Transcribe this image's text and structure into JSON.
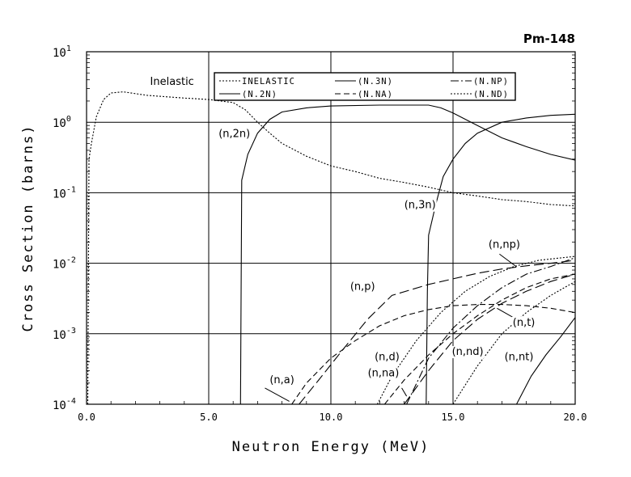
{
  "chart_data": {
    "type": "line",
    "title": "Pm-148",
    "xlabel": "Neutron Energy (MeV)",
    "ylabel": "Cross Section (barns)",
    "xlim": [
      0,
      20
    ],
    "ylim": [
      0.0001,
      10
    ],
    "yscale": "log",
    "grid": true,
    "x_ticks": [
      "0.0",
      "5.0",
      "10.0",
      "15.0",
      "20.0"
    ],
    "y_ticks": [
      {
        "base": "10",
        "exp": "1"
      },
      {
        "base": "10",
        "exp": "0"
      },
      {
        "base": "10",
        "exp": "-1"
      },
      {
        "base": "10",
        "exp": "-2"
      },
      {
        "base": "10",
        "exp": "-3"
      },
      {
        "base": "10",
        "exp": "-4"
      }
    ],
    "legend": [
      {
        "label": "INELASTIC",
        "style": "dotted"
      },
      {
        "label": "(N.3N)",
        "style": "solid"
      },
      {
        "label": "(N.NP)",
        "style": "dashdot"
      },
      {
        "label": "(N.2N)",
        "style": "solid"
      },
      {
        "label": "(N.NA)",
        "style": "dashed"
      },
      {
        "label": "(N.ND)",
        "style": "dotted"
      }
    ],
    "series": [
      {
        "name": "Inelastic",
        "style": "dotted",
        "points": [
          [
            0.05,
            0.0001
          ],
          [
            0.1,
            0.3
          ],
          [
            0.2,
            0.5
          ],
          [
            0.4,
            1.2
          ],
          [
            0.7,
            2.1
          ],
          [
            1.0,
            2.6
          ],
          [
            1.5,
            2.7
          ],
          [
            2.5,
            2.4
          ],
          [
            4.0,
            2.2
          ],
          [
            5.0,
            2.1
          ],
          [
            6.0,
            1.9
          ],
          [
            6.5,
            1.5
          ],
          [
            7.0,
            1.0
          ],
          [
            7.5,
            0.7
          ],
          [
            8.0,
            0.5
          ],
          [
            9.0,
            0.33
          ],
          [
            10.0,
            0.24
          ],
          [
            11.0,
            0.2
          ],
          [
            12.0,
            0.16
          ],
          [
            13.0,
            0.14
          ],
          [
            14.0,
            0.12
          ],
          [
            15.0,
            0.1
          ],
          [
            16.0,
            0.09
          ],
          [
            17.0,
            0.08
          ],
          [
            18.0,
            0.075
          ],
          [
            19.0,
            0.068
          ],
          [
            20.0,
            0.065
          ]
        ]
      },
      {
        "name": "(n,2n)",
        "style": "solid",
        "points": [
          [
            6.3,
            0.0001
          ],
          [
            6.32,
            0.002
          ],
          [
            6.35,
            0.15
          ],
          [
            6.6,
            0.35
          ],
          [
            7.0,
            0.7
          ],
          [
            7.5,
            1.1
          ],
          [
            8.0,
            1.4
          ],
          [
            9.0,
            1.6
          ],
          [
            10.0,
            1.7
          ],
          [
            12.0,
            1.75
          ],
          [
            14.0,
            1.75
          ],
          [
            14.5,
            1.6
          ],
          [
            15.0,
            1.35
          ],
          [
            16.0,
            0.9
          ],
          [
            17.0,
            0.6
          ],
          [
            18.0,
            0.45
          ],
          [
            19.0,
            0.35
          ],
          [
            20.0,
            0.29
          ]
        ]
      },
      {
        "name": "(n,3n)",
        "style": "solid",
        "points": [
          [
            13.9,
            0.0001
          ],
          [
            13.95,
            0.004
          ],
          [
            14.0,
            0.025
          ],
          [
            14.3,
            0.07
          ],
          [
            14.6,
            0.17
          ],
          [
            15.0,
            0.3
          ],
          [
            15.5,
            0.5
          ],
          [
            16.0,
            0.7
          ],
          [
            17.0,
            1.0
          ],
          [
            18.0,
            1.15
          ],
          [
            19.0,
            1.25
          ],
          [
            20.0,
            1.3
          ]
        ]
      },
      {
        "name": "(n,p)",
        "style": "longdash",
        "points": [
          [
            8.7,
            0.0001
          ],
          [
            9.5,
            0.00022
          ],
          [
            10.5,
            0.0006
          ],
          [
            11.5,
            0.0016
          ],
          [
            12.5,
            0.0035
          ],
          [
            14.0,
            0.005
          ],
          [
            15.0,
            0.006
          ],
          [
            16.0,
            0.0072
          ],
          [
            17.0,
            0.0083
          ],
          [
            18.0,
            0.0092
          ],
          [
            19.0,
            0.01
          ],
          [
            20.0,
            0.011
          ]
        ]
      },
      {
        "name": "(n,a)",
        "style": "dashed",
        "points": [
          [
            8.4,
            0.0001
          ],
          [
            9.0,
            0.0002
          ],
          [
            10.0,
            0.00045
          ],
          [
            11.0,
            0.0008
          ],
          [
            12.0,
            0.0013
          ],
          [
            13.0,
            0.0018
          ],
          [
            14.0,
            0.0022
          ],
          [
            15.0,
            0.0025
          ],
          [
            16.0,
            0.0026
          ],
          [
            17.0,
            0.0026
          ],
          [
            18.0,
            0.0025
          ],
          [
            19.0,
            0.0023
          ],
          [
            20.0,
            0.002
          ]
        ]
      },
      {
        "name": "(n,np)",
        "style": "dashdot",
        "points": [
          [
            13.1,
            0.0001
          ],
          [
            14.0,
            0.00045
          ],
          [
            15.0,
            0.0012
          ],
          [
            16.0,
            0.0025
          ],
          [
            17.0,
            0.0045
          ],
          [
            18.0,
            0.007
          ],
          [
            19.0,
            0.009
          ],
          [
            20.0,
            0.012
          ]
        ]
      },
      {
        "name": "(n,d)",
        "style": "dotted",
        "points": [
          [
            11.9,
            0.0001
          ],
          [
            12.5,
            0.00025
          ],
          [
            13.5,
            0.0008
          ],
          [
            14.5,
            0.002
          ],
          [
            15.5,
            0.004
          ],
          [
            16.5,
            0.0065
          ],
          [
            17.5,
            0.009
          ],
          [
            18.5,
            0.011
          ],
          [
            19.5,
            0.012
          ],
          [
            20.0,
            0.0125
          ]
        ]
      },
      {
        "name": "(n,na)",
        "style": "dashed",
        "points": [
          [
            12.2,
            0.0001
          ],
          [
            13.0,
            0.00022
          ],
          [
            14.0,
            0.0005
          ],
          [
            15.0,
            0.001
          ],
          [
            16.0,
            0.0018
          ],
          [
            17.0,
            0.003
          ],
          [
            18.0,
            0.0045
          ],
          [
            19.0,
            0.006
          ],
          [
            20.0,
            0.007
          ]
        ]
      },
      {
        "name": "(n,t)",
        "style": "longdash",
        "points": [
          [
            13.0,
            0.0001
          ],
          [
            14.0,
            0.0003
          ],
          [
            15.0,
            0.0008
          ],
          [
            16.0,
            0.0016
          ],
          [
            17.0,
            0.0027
          ],
          [
            18.0,
            0.004
          ],
          [
            19.0,
            0.0055
          ],
          [
            20.0,
            0.007
          ]
        ]
      },
      {
        "name": "(n,nd)",
        "style": "dotted",
        "points": [
          [
            15.0,
            0.0001
          ],
          [
            16.0,
            0.00035
          ],
          [
            17.0,
            0.001
          ],
          [
            18.0,
            0.002
          ],
          [
            19.0,
            0.0035
          ],
          [
            20.0,
            0.0055
          ]
        ]
      },
      {
        "name": "(n,nt)",
        "style": "solid",
        "points": [
          [
            17.6,
            0.0001
          ],
          [
            18.2,
            0.00025
          ],
          [
            18.8,
            0.0005
          ],
          [
            19.4,
            0.0009
          ],
          [
            20.0,
            0.0017
          ]
        ]
      }
    ],
    "annotations": [
      {
        "text": "Inelastic",
        "x": 3.5,
        "y": 3.4
      },
      {
        "text": "(n,2n)",
        "x": 6.05,
        "y": 0.62
      },
      {
        "text": "(n,3n)",
        "x": 13.65,
        "y": 0.06
      },
      {
        "text": "(n,np)",
        "x": 17.1,
        "y": 0.0165
      },
      {
        "text": "(n,p)",
        "x": 11.3,
        "y": 0.0042
      },
      {
        "text": "(n,t)",
        "x": 17.9,
        "y": 0.0013
      },
      {
        "text": "(n,nd)",
        "x": 15.6,
        "y": 0.0005
      },
      {
        "text": "(n,d)",
        "x": 12.3,
        "y": 0.00042
      },
      {
        "text": "(n,nt)",
        "x": 17.7,
        "y": 0.00042
      },
      {
        "text": "(n,na)",
        "x": 12.15,
        "y": 0.00025
      },
      {
        "text": "(n,a)",
        "x": 8.0,
        "y": 0.0002
      }
    ],
    "pointers": [
      {
        "from": [
          16.9,
          0.0135
        ],
        "to": [
          17.6,
          0.0089
        ]
      },
      {
        "from": [
          17.6,
          0.0016
        ],
        "to": [
          16.8,
          0.0023
        ]
      },
      {
        "from": [
          12.9,
          0.00017
        ],
        "to": [
          13.1,
          0.00013
        ]
      },
      {
        "from": [
          7.3,
          0.00017
        ],
        "to": [
          8.3,
          0.00011
        ]
      }
    ]
  }
}
